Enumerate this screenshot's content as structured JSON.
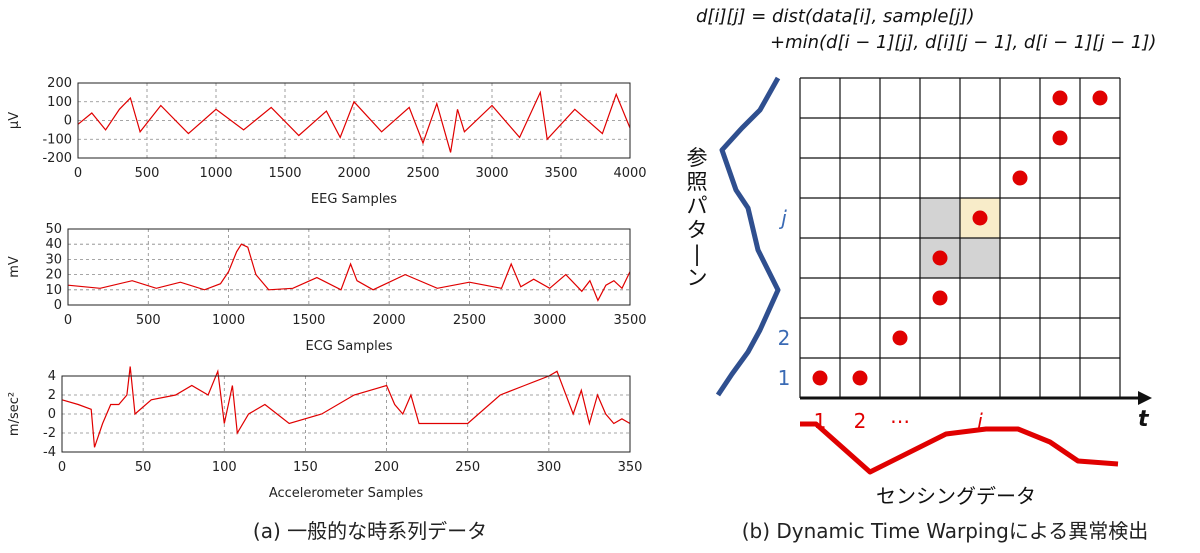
{
  "panel_a": {
    "caption": "(a) 一般的な時系列データ",
    "charts": [
      {
        "type": "line",
        "xlabel": "EEG Samples",
        "ylabel": "μV",
        "xlim": [
          0,
          4000
        ],
        "ylim": [
          -200,
          200
        ],
        "xticks": [
          "0",
          "500",
          "1000",
          "1500",
          "2000",
          "2500",
          "3000",
          "3500",
          "4000"
        ],
        "yticks": [
          "200",
          "100",
          "0",
          "-100",
          "-200"
        ],
        "grid": true,
        "line_color": "#e00000",
        "series": [
          {
            "x": [
              0,
              100,
              200,
              300,
              380,
              450,
              600,
              800,
              1000,
              1200,
              1400,
              1600,
              1800,
              1900,
              2000,
              2200,
              2400,
              2500,
              2600,
              2700,
              2750,
              2800,
              3000,
              3200,
              3350,
              3400,
              3600,
              3800,
              3900,
              4000
            ],
            "y": [
              -20,
              40,
              -50,
              60,
              120,
              -60,
              80,
              -70,
              60,
              -50,
              70,
              -80,
              50,
              -90,
              100,
              -60,
              70,
              -120,
              90,
              -170,
              60,
              -60,
              80,
              -90,
              150,
              -100,
              60,
              -70,
              140,
              -40
            ]
          }
        ]
      },
      {
        "type": "line",
        "xlabel": "ECG Samples",
        "ylabel": "mV",
        "xlim": [
          0,
          3500
        ],
        "ylim": [
          0,
          50
        ],
        "xticks": [
          "0",
          "500",
          "1000",
          "1500",
          "2000",
          "2500",
          "3000",
          "3500"
        ],
        "yticks": [
          "50",
          "40",
          "30",
          "20",
          "10",
          "0"
        ],
        "grid": true,
        "line_color": "#e00000",
        "series": [
          {
            "x": [
              0,
              200,
              400,
              550,
              700,
              850,
              950,
              1000,
              1050,
              1080,
              1120,
              1170,
              1250,
              1400,
              1550,
              1700,
              1760,
              1800,
              1900,
              2100,
              2300,
              2500,
              2700,
              2760,
              2820,
              2900,
              3000,
              3100,
              3200,
              3250,
              3300,
              3350,
              3400,
              3450,
              3500
            ],
            "y": [
              13,
              11,
              16,
              11,
              15,
              10,
              14,
              22,
              35,
              40,
              38,
              20,
              10,
              11,
              18,
              10,
              27,
              16,
              10,
              20,
              11,
              15,
              11,
              27,
              12,
              17,
              11,
              20,
              9,
              16,
              3,
              13,
              16,
              11,
              22
            ]
          }
        ]
      },
      {
        "type": "line",
        "xlabel": "Accelerometer Samples",
        "ylabel": "m/sec²",
        "xlim": [
          0,
          350
        ],
        "ylim": [
          -4,
          4
        ],
        "xticks": [
          "0",
          "50",
          "100",
          "150",
          "200",
          "250",
          "300",
          "350"
        ],
        "yticks": [
          "4",
          "2",
          "0",
          "-2",
          "-4"
        ],
        "grid": true,
        "line_color": "#e00000",
        "series": [
          {
            "x": [
              0,
              10,
              18,
              20,
              25,
              30,
              35,
              40,
              42,
              45,
              55,
              70,
              80,
              90,
              96,
              100,
              105,
              108,
              115,
              125,
              140,
              160,
              180,
              200,
              205,
              210,
              215,
              220,
              230,
              250,
              270,
              285,
              300,
              305,
              315,
              320,
              325,
              330,
              335,
              340,
              345,
              350
            ],
            "y": [
              1.5,
              1,
              0.5,
              -3.5,
              -1,
              1,
              1,
              2,
              5,
              0,
              1.5,
              2,
              3,
              2,
              4.5,
              -1,
              3,
              -2,
              0,
              1,
              -1,
              0,
              2,
              3,
              1,
              0,
              2,
              -1,
              -1,
              -1,
              2,
              3,
              4,
              4.5,
              0,
              2.5,
              -1,
              2,
              0,
              -1,
              -0.5,
              -1
            ]
          }
        ]
      }
    ]
  },
  "panel_b": {
    "caption": "(b) Dynamic Time Warpingによる異常検出",
    "formula_line1": "d[i][j] =  dist(data[i], sample[j])",
    "formula_line2": "+min(d[i − 1][j], d[i][j − 1], d[i − 1][j − 1])",
    "reference_label": "参照パターン",
    "sensing_label": "センシングデータ",
    "x_axis_label": "t",
    "x_index_labels": [
      "1",
      "2",
      "⋯",
      "i"
    ],
    "y_index_labels": [
      "1",
      "2",
      "j"
    ],
    "grid_cols": 8,
    "grid_rows": 8,
    "highlight_cells": [
      [
        3,
        3
      ],
      [
        4,
        3
      ],
      [
        3,
        4
      ],
      [
        4,
        4
      ]
    ],
    "target_cell": [
      4,
      4
    ],
    "path_cells": [
      [
        0,
        0
      ],
      [
        1,
        0
      ],
      [
        2,
        1
      ],
      [
        3,
        2
      ],
      [
        3,
        3
      ],
      [
        4,
        4
      ],
      [
        5,
        5
      ],
      [
        6,
        6
      ],
      [
        6,
        7
      ],
      [
        7,
        7
      ]
    ],
    "colors": {
      "path": "#e00000",
      "reference": "#2f4f8f",
      "highlight": "#d3d3d3",
      "target": "#f8ecc9",
      "index_blue": "#3a6ab4",
      "index_red": "#e00000"
    }
  }
}
